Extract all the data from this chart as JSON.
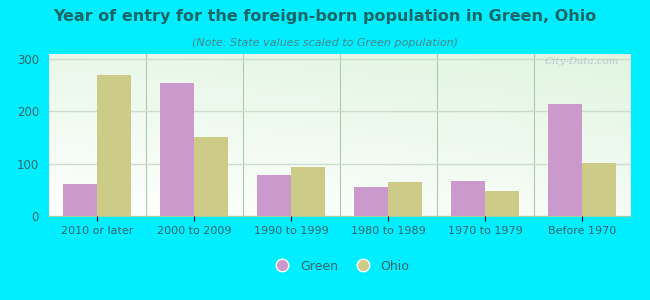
{
  "title": "Year of entry for the foreign-born population in Green, Ohio",
  "subtitle": "(Note: State values scaled to Green population)",
  "categories": [
    "2010 or later",
    "2000 to 2009",
    "1990 to 1999",
    "1980 to 1989",
    "1970 to 1979",
    "Before 1970"
  ],
  "green_values": [
    62,
    255,
    78,
    55,
    67,
    215
  ],
  "ohio_values": [
    270,
    152,
    93,
    65,
    48,
    102
  ],
  "green_color": "#cc99cc",
  "ohio_color": "#cccc88",
  "background_outer": "#00eeff",
  "bar_width": 0.35,
  "ylim": [
    0,
    310
  ],
  "yticks": [
    0,
    100,
    200,
    300
  ],
  "watermark": "City-Data.com",
  "legend_labels": [
    "Green",
    "Ohio"
  ],
  "title_color": "#1a6666",
  "subtitle_color": "#4a8888",
  "tick_color": "#336666",
  "grid_color": "#ccddcc",
  "separator_color": "#aaccaa"
}
